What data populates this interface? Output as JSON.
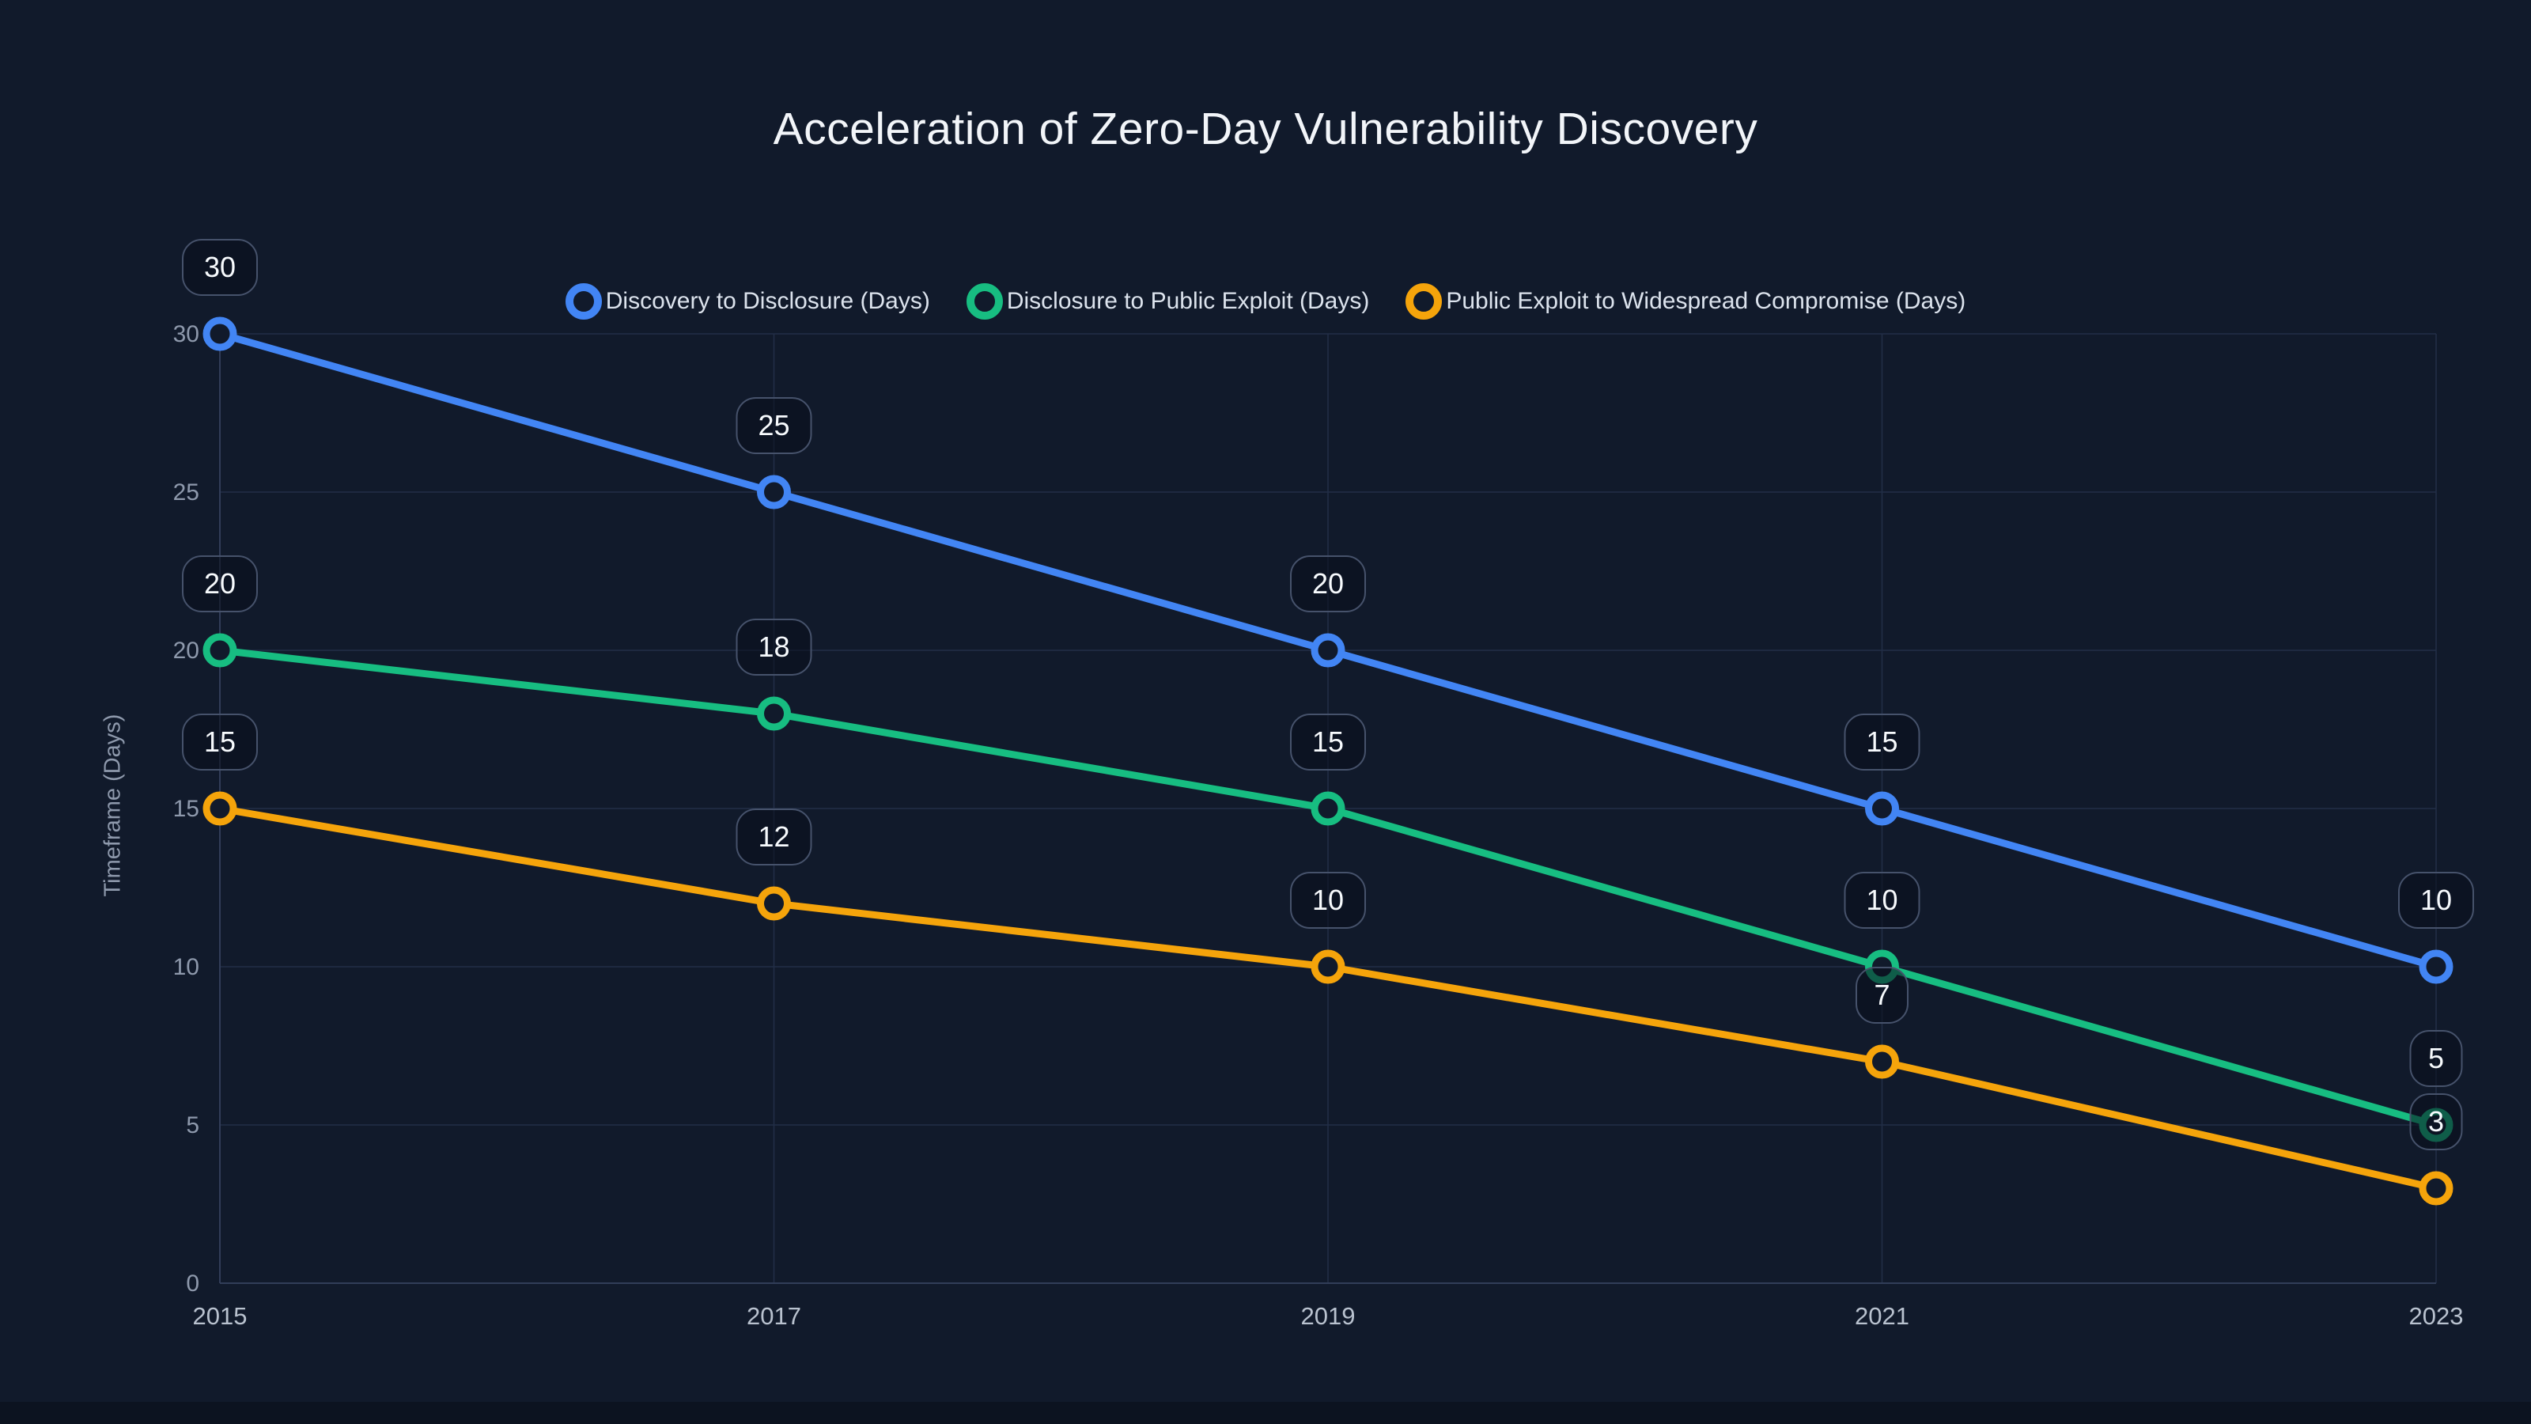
{
  "title": "Acceleration of Zero-Day Vulnerability Discovery",
  "colors": {
    "background": "#111A2B",
    "bottom_strip": "#0C1320",
    "title_text": "#F2F5F9",
    "legend_text": "#DCE3ED",
    "y_tick_text": "#8E99AC",
    "x_tick_text": "#B9C2CF",
    "axis_line": "#313D58",
    "gridline": "#222E47",
    "label_box_fill": "rgba(9,15,28,0.55)",
    "label_box_border": "#46526B",
    "label_text": "#F7FAFD"
  },
  "chart_data": {
    "type": "line",
    "x": [
      2015,
      2017,
      2019,
      2021,
      2023
    ],
    "series": [
      {
        "name": "Discovery to Disclosure (Days)",
        "color": "#4285F4",
        "values": [
          30,
          25,
          20,
          15,
          10
        ]
      },
      {
        "name": "Disclosure to Public Exploit (Days)",
        "color": "#17BD81",
        "values": [
          20,
          18,
          15,
          10,
          5
        ]
      },
      {
        "name": "Public Exploit to Widespread Compromise (Days)",
        "color": "#F5A40B",
        "values": [
          15,
          12,
          10,
          7,
          3
        ]
      }
    ],
    "title": "Acceleration of Zero-Day Vulnerability Discovery",
    "xlabel": "",
    "ylabel": "Timeframe (Days)",
    "yticks": [
      0,
      5,
      10,
      15,
      20,
      25,
      30
    ],
    "ylim": [
      0,
      30
    ],
    "grid": true,
    "legend_position": "top",
    "data_labels": true,
    "marker_style": "open-circle"
  }
}
